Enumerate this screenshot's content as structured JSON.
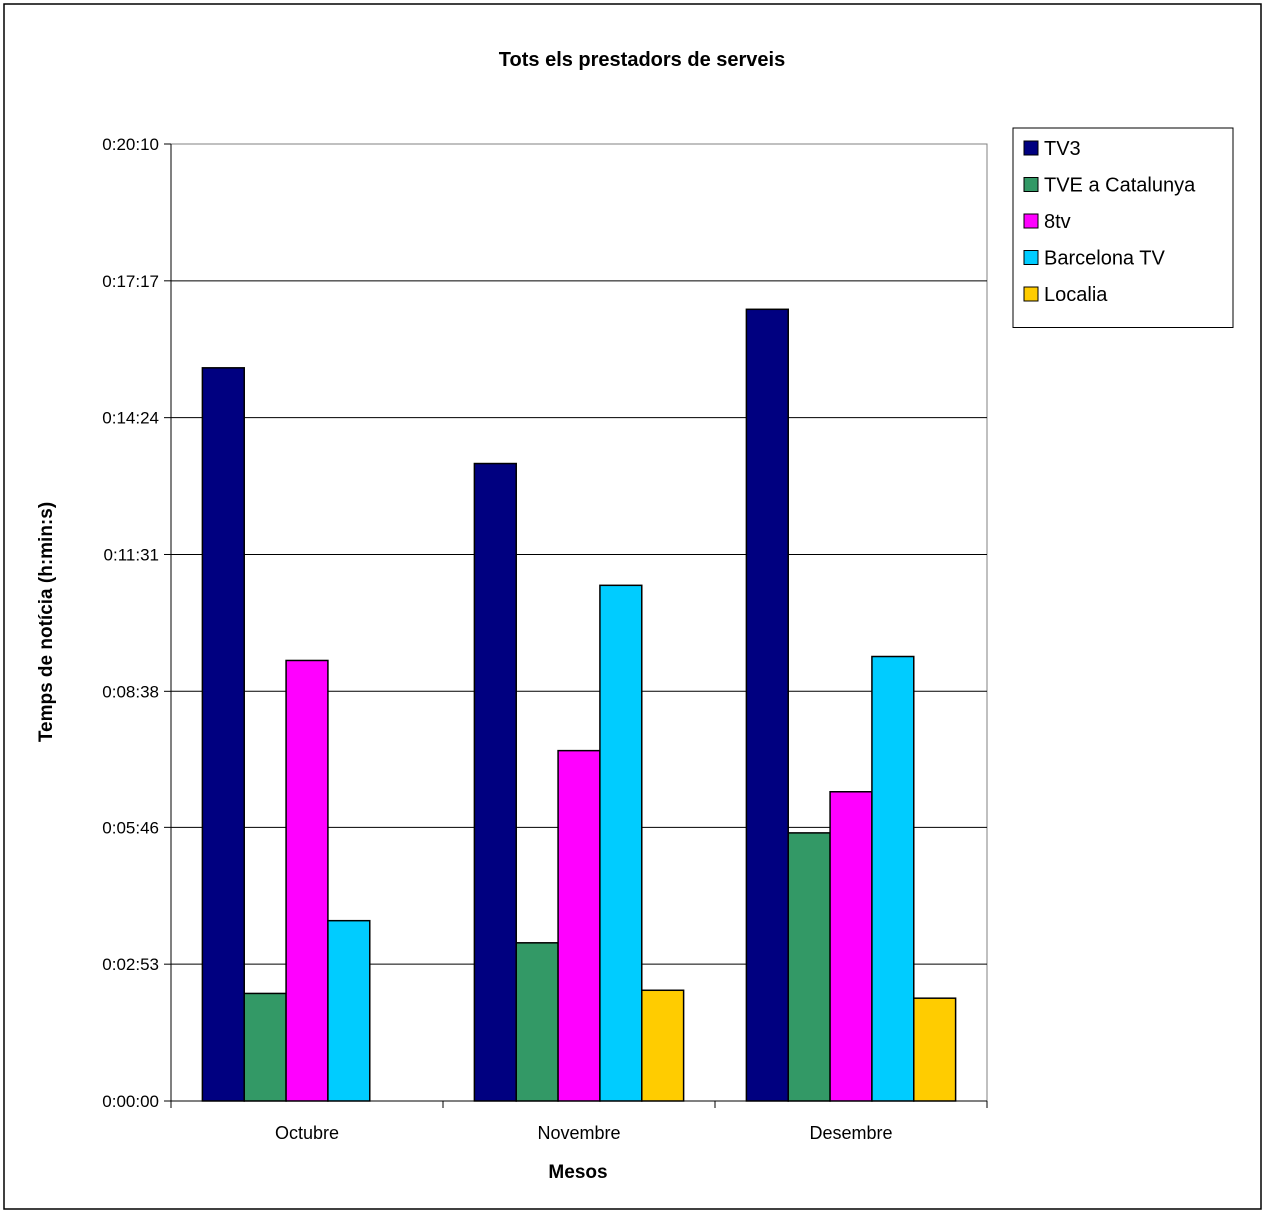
{
  "chart_data": {
    "type": "bar",
    "title": "Tots els prestadors de serveis",
    "xlabel": "Mesos",
    "ylabel": "Temps de notícia (h:min:s)",
    "categories": [
      "Octubre",
      "Novembre",
      "Desembre"
    ],
    "y_unit": "seconds",
    "ylim": [
      0,
      1210
    ],
    "yticks": [
      {
        "value": 0,
        "label": "0:00:00"
      },
      {
        "value": 173,
        "label": "0:02:53"
      },
      {
        "value": 346,
        "label": "0:05:46"
      },
      {
        "value": 518,
        "label": "0:08:38"
      },
      {
        "value": 691,
        "label": "0:11:31"
      },
      {
        "value": 864,
        "label": "0:14:24"
      },
      {
        "value": 1037,
        "label": "0:17:17"
      },
      {
        "value": 1210,
        "label": "0:20:10"
      }
    ],
    "grid": true,
    "legend_position": "right",
    "series": [
      {
        "name": "TV3",
        "color": "#000080",
        "values": [
          927,
          806,
          1001
        ]
      },
      {
        "name": "TVE a Catalunya",
        "color": "#339966",
        "values": [
          136,
          200,
          339
        ]
      },
      {
        "name": "8tv",
        "color": "#ff00ff",
        "values": [
          557,
          443,
          391
        ]
      },
      {
        "name": "Barcelona TV",
        "color": "#00ccff",
        "values": [
          228,
          652,
          562
        ]
      },
      {
        "name": "Localia",
        "color": "#ffcc00",
        "values": [
          null,
          140,
          130
        ]
      }
    ]
  }
}
